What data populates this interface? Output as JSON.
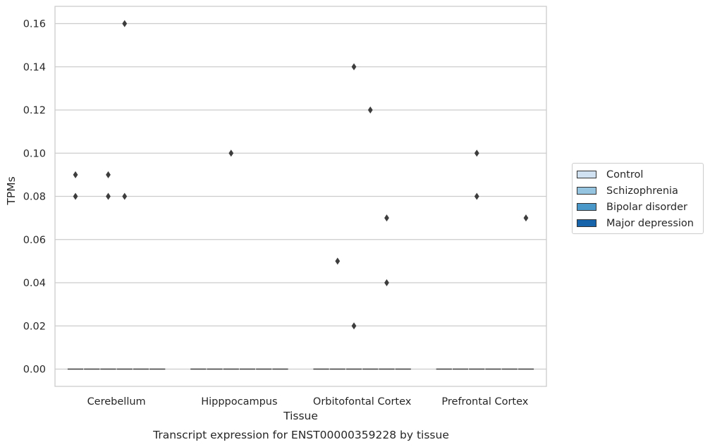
{
  "chart_data": {
    "type": "box",
    "title": "Transcript expression for ENST00000359228 by tissue",
    "xlabel": "Tissue",
    "ylabel": "TPMs",
    "ylim": [
      -0.008,
      0.168
    ],
    "yticks": [
      "0.00",
      "0.02",
      "0.04",
      "0.06",
      "0.08",
      "0.10",
      "0.12",
      "0.14",
      "0.16"
    ],
    "ytick_values": [
      0,
      0.02,
      0.04,
      0.06,
      0.08,
      0.1,
      0.12,
      0.14,
      0.16
    ],
    "grid": true,
    "legend_placement": "right",
    "categories": [
      "Cerebellum",
      "Hipppocampus",
      "Orbitofontal Cortex",
      "Prefrontal Cortex"
    ],
    "series": [
      {
        "name": "Control",
        "color": "#d0e1f2",
        "medians": [
          0,
          0,
          0,
          0
        ],
        "outliers": [
          [
            0.09,
            0.08
          ],
          [],
          [],
          []
        ]
      },
      {
        "name": "Schizophrenia",
        "color": "#94c4df",
        "medians": [
          0,
          0,
          0,
          0
        ],
        "outliers": [
          [],
          [],
          [
            0.05
          ],
          []
        ]
      },
      {
        "name": "Bipolar disorder",
        "color": "#4a98c9",
        "medians": [
          0,
          0,
          0,
          0
        ],
        "outliers": [
          [
            0.09,
            0.08
          ],
          [
            0.1
          ],
          [
            0.14,
            0.02
          ],
          [
            0.1,
            0.08
          ]
        ]
      },
      {
        "name": "Major depression",
        "color": "#1764ab",
        "medians": [
          0,
          0,
          0,
          0
        ],
        "outliers": [
          [
            0.16,
            0.08
          ],
          [],
          [
            0.12
          ],
          []
        ]
      },
      {
        "name": "",
        "color": "#1764ab",
        "medians": [
          0,
          0,
          0,
          0
        ],
        "outliers": [
          [],
          [],
          [
            0.07,
            0.04
          ],
          []
        ]
      },
      {
        "name": "",
        "color": "#1764ab",
        "medians": [
          0,
          0,
          0,
          0
        ],
        "outliers": [
          [],
          [],
          [],
          [
            0.07
          ]
        ]
      }
    ]
  },
  "legend": {
    "items": [
      {
        "label": "Control",
        "color": "#d0e1f2"
      },
      {
        "label": "Schizophrenia",
        "color": "#94c4df"
      },
      {
        "label": "Bipolar disorder",
        "color": "#4a98c9"
      },
      {
        "label": "Major depression",
        "color": "#1764ab"
      }
    ]
  }
}
